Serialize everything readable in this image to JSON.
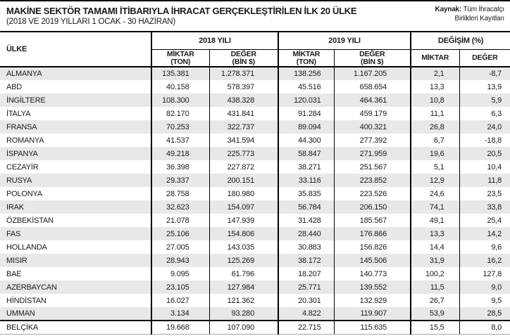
{
  "colors": {
    "top_rule": "#000000",
    "row_stripe": "#e8e8e8",
    "text": "#1a1a1a",
    "table_border": "#000000",
    "bottom_rule": "#a6a6a6"
  },
  "header": {
    "title": "MAKİNE SEKTÖR TAMAMI İTİBARIYLA İHRACAT GERÇEKLEŞTİRİLEN İLK 20 ÜLKE",
    "subtitle": "(2018 VE 2019 YILLARI 1 OCAK - 30 HAZİRAN)",
    "source_label": "Kaynak:",
    "source_text": " Tüm İhracatçı Birlikleri Kayıtları"
  },
  "table": {
    "country_header": "ÜLKE",
    "groups": [
      {
        "label": "2018 YILI",
        "sub": [
          {
            "l1": "MİKTAR",
            "l2": "(TON)"
          },
          {
            "l1": "DEĞER",
            "l2": "(BİN $)"
          }
        ]
      },
      {
        "label": "2019 YILI",
        "sub": [
          {
            "l1": "MİKTAR",
            "l2": "(TON)"
          },
          {
            "l1": "DEĞER",
            "l2": "(BİN $)"
          }
        ]
      },
      {
        "label": "DEĞİŞİM (%)",
        "sub": [
          {
            "l1": "MİKTAR",
            "l2": ""
          },
          {
            "l1": "DEĞER",
            "l2": ""
          }
        ]
      }
    ]
  },
  "chart_data": {
    "type": "table",
    "title": "MAKİNE SEKTÖR TAMAMI İTİBARIYLA İHRACAT GERÇEKLEŞTİRİLEN İLK 20 ÜLKE",
    "subtitle": "(2018 VE 2019 YILLARI 1 OCAK - 30 HAZİRAN)",
    "source": "Kaynak: Tüm İhracatçı Birlikleri Kayıtları",
    "column_groups": [
      "",
      "2018 YILI",
      "2018 YILI",
      "2019 YILI",
      "2019 YILI",
      "DEĞİŞİM (%)",
      "DEĞİŞİM (%)"
    ],
    "columns": [
      "ÜLKE",
      "MİKTAR (TON)",
      "DEĞER (BİN $)",
      "MİKTAR (TON)",
      "DEĞER (BİN $)",
      "MİKTAR",
      "DEĞER"
    ],
    "rows": [
      [
        "ALMANYA",
        "135.381",
        "1.278.371",
        "138.256",
        "1.167.205",
        "2,1",
        "-8,7"
      ],
      [
        "ABD",
        "40.158",
        "578.397",
        "45.516",
        "658.654",
        "13,3",
        "13,9"
      ],
      [
        "İNGİLTERE",
        "108.300",
        "438.328",
        "120.031",
        "464.361",
        "10,8",
        "5,9"
      ],
      [
        "İTALYA",
        "82.170",
        "431.841",
        "91.284",
        "459.179",
        "11,1",
        "6,3"
      ],
      [
        "FRANSA",
        "70.253",
        "322.737",
        "89.094",
        "400.321",
        "26,8",
        "24,0"
      ],
      [
        "ROMANYA",
        "41.537",
        "341.594",
        "44.300",
        "277.392",
        "6,7",
        "-18,8"
      ],
      [
        "İSPANYA",
        "49.218",
        "225.773",
        "58.847",
        "271.959",
        "19,6",
        "20,5"
      ],
      [
        "CEZAYİR",
        "36.398",
        "227.872",
        "38.271",
        "251.567",
        "5,1",
        "10,4"
      ],
      [
        "RUSYA",
        "29.337",
        "200.151",
        "33.116",
        "223.852",
        "12,9",
        "11,8"
      ],
      [
        "POLONYA",
        "28.758",
        "180.980",
        "35.835",
        "223.526",
        "24,6",
        "23,5"
      ],
      [
        "IRAK",
        "32.623",
        "154.097",
        "56.784",
        "206.150",
        "74,1",
        "33,8"
      ],
      [
        "ÖZBEKİSTAN",
        "21.078",
        "147.939",
        "31.428",
        "185.567",
        "49,1",
        "25,4"
      ],
      [
        "FAS",
        "25.106",
        "154.806",
        "28.440",
        "176.866",
        "13,3",
        "14,2"
      ],
      [
        "HOLLANDA",
        "27.005",
        "143.035",
        "30.883",
        "156.826",
        "14,4",
        "9,6"
      ],
      [
        "MISIR",
        "28.943",
        "125.269",
        "38.172",
        "145.506",
        "31,9",
        "16,2"
      ],
      [
        "BAE",
        "9.095",
        "61.796",
        "18.207",
        "140.773",
        "100,2",
        "127,8"
      ],
      [
        "AZERBAYCAN",
        "23.105",
        "127.984",
        "25.771",
        "139.552",
        "11,5",
        "9,0"
      ],
      [
        "HİNDİSTAN",
        "16.027",
        "121.362",
        "20.301",
        "132.929",
        "26,7",
        "9,5"
      ],
      [
        "UMMAN",
        "3.134",
        "93.280",
        "4.822",
        "119.907",
        "53,9",
        "28,5"
      ],
      [
        "BELÇİKA",
        "19.668",
        "107.090",
        "22.715",
        "115.635",
        "15,5",
        "8,0"
      ]
    ]
  }
}
